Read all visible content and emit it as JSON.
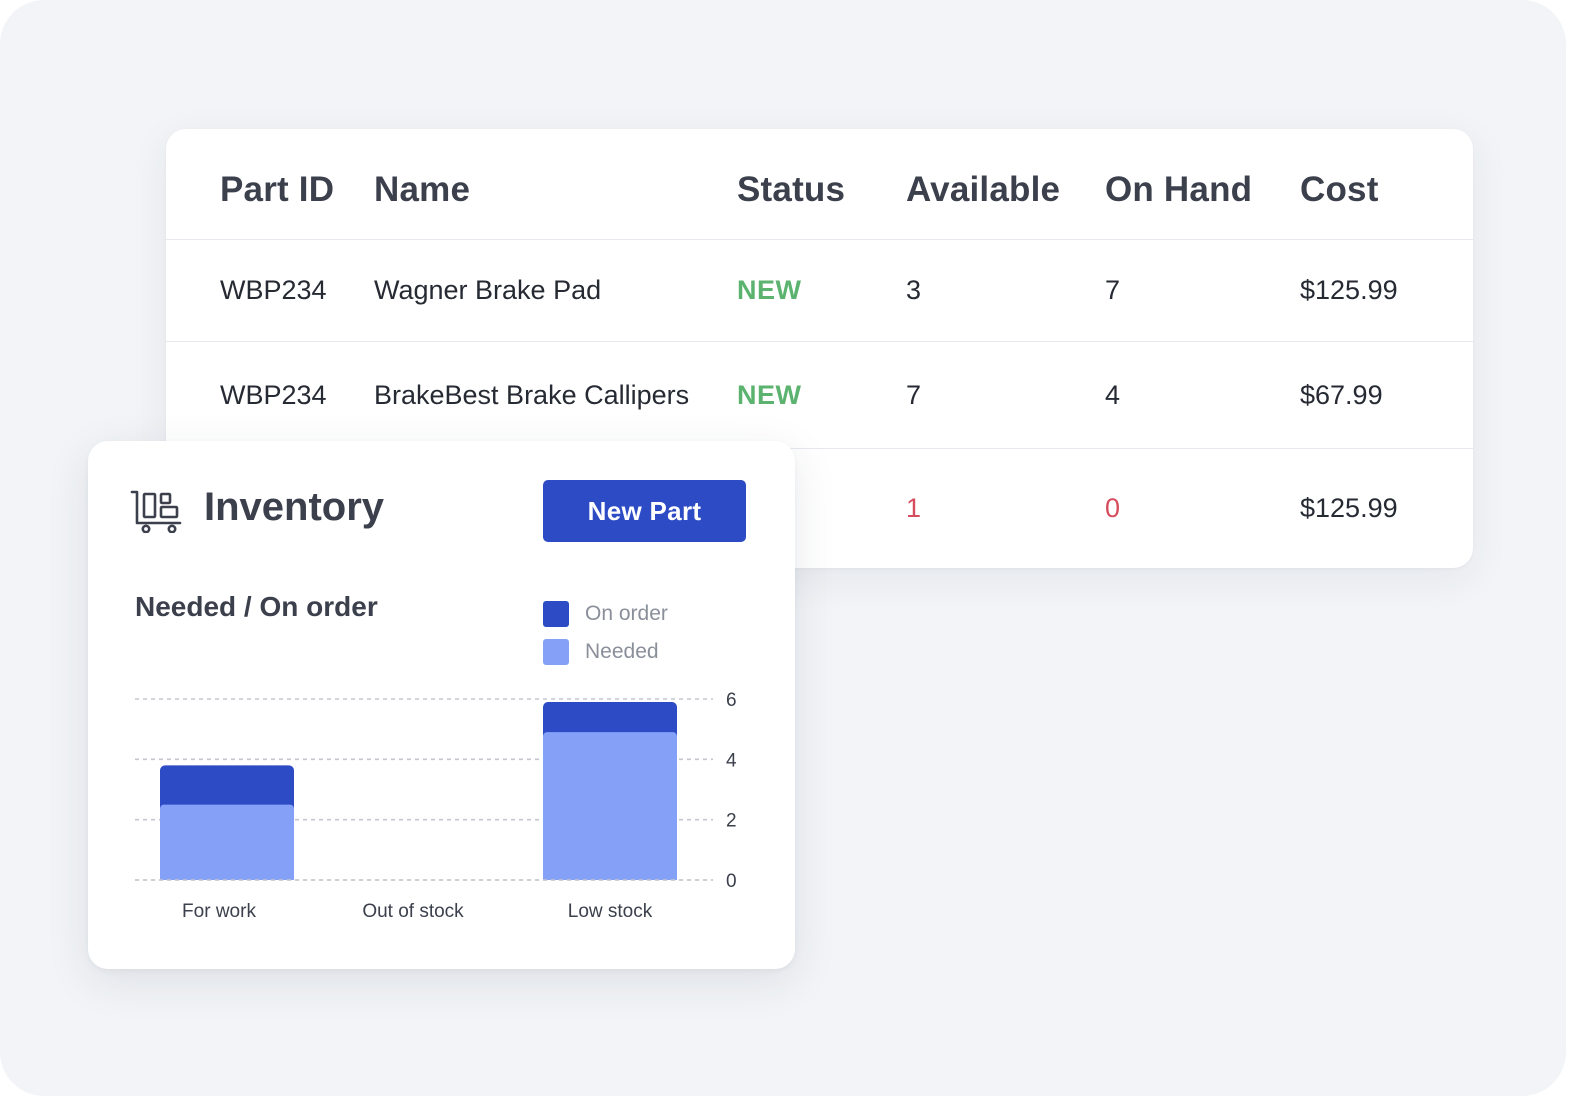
{
  "table": {
    "columns": [
      "Part ID",
      "Name",
      "Status",
      "Available",
      "On Hand",
      "Cost"
    ],
    "rows": [
      {
        "part_id": "WBP234",
        "name": "Wagner Brake Pad",
        "status": "NEW",
        "available": "3",
        "on_hand": "7",
        "cost": "$125.99"
      },
      {
        "part_id": "WBP234",
        "name": "BrakeBest Brake Callipers",
        "status": "NEW",
        "available": "7",
        "on_hand": "4",
        "cost": "$67.99"
      },
      {
        "part_id": "",
        "name": "",
        "status": "",
        "available": "1",
        "on_hand": "0",
        "cost": "$125.99"
      }
    ]
  },
  "inventory": {
    "title": "Inventory",
    "icon": "cart-icon",
    "new_part_label": "New Part"
  },
  "colors": {
    "on_order": "#2c4bc4",
    "needed": "#84a0f7",
    "status_new": "#5bb36f",
    "warning": "#d64c5c",
    "primary_button": "#2c4bc4"
  },
  "chart_data": {
    "type": "bar",
    "stacked": true,
    "title": "Needed / On order",
    "categories": [
      "For work",
      "Out of stock",
      "Low stock"
    ],
    "series": [
      {
        "name": "Needed",
        "values": [
          2.5,
          0,
          4.9
        ]
      },
      {
        "name": "On order",
        "values": [
          1.3,
          0,
          1.0
        ]
      }
    ],
    "yticks": [
      0,
      2,
      4,
      6
    ],
    "ylim": [
      0,
      6
    ],
    "y_axis_side": "right",
    "grid": true,
    "legend": "top-right"
  }
}
